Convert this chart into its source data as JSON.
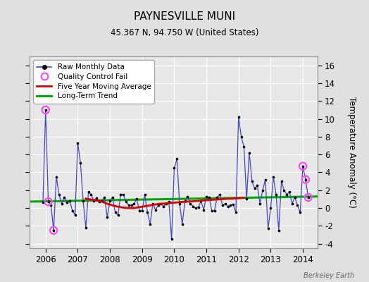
{
  "title": "PAYNESVILLE MUNI",
  "subtitle": "45.367 N, 94.750 W (United States)",
  "ylabel": "Temperature Anomaly (°C)",
  "watermark": "Berkeley Earth",
  "ylim": [
    -4.5,
    17
  ],
  "yticks": [
    -4,
    -2,
    0,
    2,
    4,
    6,
    8,
    10,
    12,
    14,
    16
  ],
  "xlim": [
    2005.5,
    2014.45
  ],
  "xticks": [
    2006,
    2007,
    2008,
    2009,
    2010,
    2011,
    2012,
    2013,
    2014
  ],
  "bg_color": "#e0e0e0",
  "plot_bg_color": "#e8e8e8",
  "grid_color": "#ffffff",
  "raw_color": "#4444cc",
  "raw_marker_color": "#000000",
  "moving_avg_color": "#dd0000",
  "trend_color": "#00aa00",
  "qc_fail_color": "#ff44ff",
  "raw_monthly_data": [
    2005.917,
    0.6,
    2006.0,
    11.0,
    2006.083,
    0.7,
    2006.167,
    0.3,
    2006.25,
    -2.5,
    2006.333,
    3.5,
    2006.417,
    1.5,
    2006.5,
    0.5,
    2006.583,
    1.2,
    2006.667,
    0.6,
    2006.75,
    0.8,
    2006.833,
    -0.3,
    2006.917,
    -0.8,
    2007.0,
    7.3,
    2007.083,
    5.1,
    2007.167,
    0.8,
    2007.25,
    -2.2,
    2007.333,
    1.8,
    2007.417,
    1.5,
    2007.5,
    0.8,
    2007.583,
    1.1,
    2007.667,
    0.7,
    2007.75,
    0.8,
    2007.833,
    1.2,
    2007.917,
    -1.0,
    2008.0,
    0.8,
    2008.083,
    1.2,
    2008.167,
    -0.5,
    2008.25,
    -0.8,
    2008.333,
    1.5,
    2008.417,
    1.5,
    2008.5,
    0.7,
    2008.583,
    0.3,
    2008.667,
    0.3,
    2008.75,
    0.5,
    2008.833,
    1.0,
    2008.917,
    -0.3,
    2009.0,
    -0.3,
    2009.083,
    1.5,
    2009.167,
    -0.5,
    2009.25,
    -1.8,
    2009.333,
    0.5,
    2009.417,
    -0.2,
    2009.5,
    0.3,
    2009.583,
    0.5,
    2009.667,
    0.2,
    2009.75,
    0.5,
    2009.833,
    0.7,
    2009.917,
    -3.5,
    2010.0,
    4.5,
    2010.083,
    5.5,
    2010.167,
    0.5,
    2010.25,
    -1.8,
    2010.333,
    0.8,
    2010.417,
    1.3,
    2010.5,
    0.5,
    2010.583,
    0.2,
    2010.667,
    0.0,
    2010.75,
    0.1,
    2010.833,
    0.8,
    2010.917,
    -0.2,
    2011.0,
    1.3,
    2011.083,
    1.2,
    2011.167,
    -0.3,
    2011.25,
    -0.3,
    2011.333,
    1.2,
    2011.417,
    1.5,
    2011.5,
    0.3,
    2011.583,
    0.5,
    2011.667,
    0.2,
    2011.75,
    0.3,
    2011.833,
    0.4,
    2011.917,
    -0.5,
    2012.0,
    10.2,
    2012.083,
    8.0,
    2012.167,
    6.9,
    2012.25,
    1.0,
    2012.333,
    6.2,
    2012.417,
    3.0,
    2012.5,
    2.2,
    2012.583,
    2.5,
    2012.667,
    0.5,
    2012.75,
    2.0,
    2012.833,
    3.2,
    2012.917,
    -2.3,
    2013.0,
    0.0,
    2013.083,
    3.5,
    2013.167,
    1.5,
    2013.25,
    -2.5,
    2013.333,
    3.0,
    2013.417,
    2.0,
    2013.5,
    1.5,
    2013.583,
    1.8,
    2013.667,
    0.5,
    2013.75,
    1.2,
    2013.833,
    0.3,
    2013.917,
    -0.5,
    2014.0,
    4.7,
    2014.083,
    3.2,
    2014.167,
    1.2
  ],
  "qc_fail_points": [
    [
      2006.0,
      11.0
    ],
    [
      2006.083,
      0.7
    ],
    [
      2006.25,
      -2.5
    ],
    [
      2014.0,
      4.7
    ],
    [
      2014.083,
      3.2
    ],
    [
      2014.167,
      1.2
    ]
  ],
  "moving_avg_data": [
    2007.25,
    1.05,
    2007.333,
    1.0,
    2007.417,
    0.95,
    2007.5,
    0.9,
    2007.583,
    0.85,
    2007.667,
    0.8,
    2007.75,
    0.72,
    2007.833,
    0.6,
    2007.917,
    0.48,
    2008.0,
    0.38,
    2008.083,
    0.3,
    2008.167,
    0.22,
    2008.25,
    0.15,
    2008.333,
    0.1,
    2008.417,
    0.05,
    2008.5,
    0.02,
    2008.583,
    0.0,
    2008.667,
    -0.02,
    2008.75,
    0.0,
    2008.833,
    0.05,
    2008.917,
    0.1,
    2009.0,
    0.15,
    2009.083,
    0.2,
    2009.167,
    0.25,
    2009.25,
    0.3,
    2009.333,
    0.35,
    2009.417,
    0.4,
    2009.5,
    0.45,
    2009.583,
    0.48,
    2009.667,
    0.5,
    2009.75,
    0.52,
    2009.833,
    0.55,
    2009.917,
    0.58,
    2010.0,
    0.6,
    2010.083,
    0.63,
    2010.167,
    0.66,
    2010.25,
    0.68,
    2010.333,
    0.7,
    2010.417,
    0.72,
    2010.5,
    0.74,
    2010.583,
    0.76,
    2010.667,
    0.78,
    2010.75,
    0.8,
    2010.833,
    0.82,
    2010.917,
    0.85,
    2011.0,
    0.88,
    2011.083,
    0.9,
    2011.167,
    0.92,
    2011.25,
    0.94,
    2011.333,
    0.96,
    2011.417,
    0.98,
    2011.5,
    1.0,
    2011.583,
    1.02,
    2011.667,
    1.04,
    2011.75,
    1.05,
    2011.833,
    1.07,
    2011.917,
    1.08,
    2012.0,
    1.1,
    2012.083,
    1.12,
    2012.167,
    1.15
  ],
  "trend_x": [
    2005.5,
    2014.5
  ],
  "trend_y": [
    0.72,
    1.3
  ]
}
